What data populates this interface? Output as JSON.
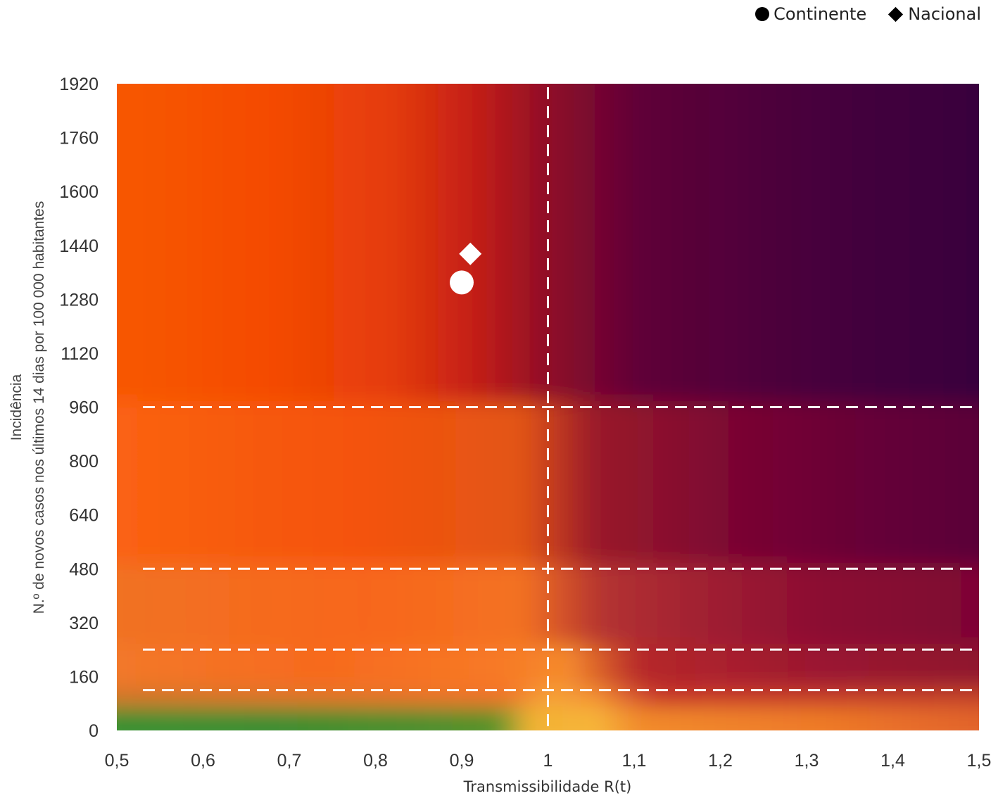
{
  "chart_data": {
    "type": "scatter",
    "title": "",
    "xlabel": "Transmissibilidade R(t)",
    "ylabel_line1": "Incidência",
    "ylabel_line2": "N.º de novos casos nos últimos 14 dias por 100 000 habitantes",
    "xlim": [
      0.5,
      1.5
    ],
    "ylim": [
      0,
      1920
    ],
    "x_ticks": [
      0.5,
      0.6,
      0.7,
      0.8,
      0.9,
      1,
      1.1,
      1.2,
      1.3,
      1.4,
      1.5
    ],
    "x_tick_labels": [
      "0,5",
      "0,6",
      "0,7",
      "0,8",
      "0,9",
      "1",
      "1,1",
      "1,2",
      "1,3",
      "1,4",
      "1,5"
    ],
    "y_ticks": [
      0,
      160,
      320,
      480,
      640,
      800,
      960,
      1120,
      1280,
      1440,
      1600,
      1760,
      1920
    ],
    "y_tick_labels": [
      "0",
      "160",
      "320",
      "480",
      "640",
      "800",
      "960",
      "1120",
      "1280",
      "1440",
      "1600",
      "1760",
      "1920"
    ],
    "reference_lines": {
      "horizontal": [
        120,
        240,
        480,
        960
      ],
      "vertical": [
        1
      ]
    },
    "legend_position": "top-right",
    "series": [
      {
        "name": "Continente",
        "marker": "circle",
        "x": [
          0.9
        ],
        "y": [
          1330
        ]
      },
      {
        "name": "Nacional",
        "marker": "diamond",
        "x": [
          0.91
        ],
        "y": [
          1415
        ]
      }
    ],
    "background_colors": {
      "green": "#2e8b2f",
      "yellow": "#f7b733",
      "orange": "#f26b1d",
      "red_orange": "#f05a0a",
      "dark_red": "#a8121f",
      "crimson": "#5e0038",
      "purple": "#3a003c"
    }
  }
}
